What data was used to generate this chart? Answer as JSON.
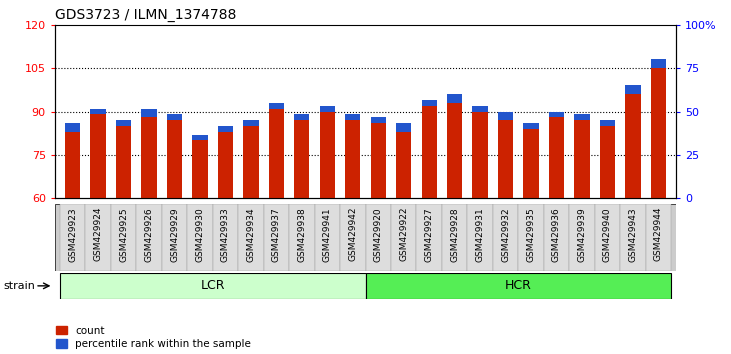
{
  "title": "GDS3723 / ILMN_1374788",
  "categories": [
    "GSM429923",
    "GSM429924",
    "GSM429925",
    "GSM429926",
    "GSM429929",
    "GSM429930",
    "GSM429933",
    "GSM429934",
    "GSM429937",
    "GSM429938",
    "GSM429941",
    "GSM429942",
    "GSM429920",
    "GSM429922",
    "GSM429927",
    "GSM429928",
    "GSM429931",
    "GSM429932",
    "GSM429935",
    "GSM429936",
    "GSM429939",
    "GSM429940",
    "GSM429943",
    "GSM429944"
  ],
  "red_values": [
    83,
    89,
    85,
    88,
    87,
    80,
    83,
    85,
    91,
    87,
    90,
    87,
    86,
    83,
    92,
    93,
    90,
    87,
    84,
    88,
    87,
    85,
    96,
    105
  ],
  "blue_values": [
    3,
    2,
    2,
    3,
    2,
    2,
    2,
    2,
    2,
    2,
    2,
    2,
    2,
    3,
    2,
    3,
    2,
    3,
    2,
    2,
    2,
    2,
    3,
    3
  ],
  "ylim_left": [
    60,
    120
  ],
  "ylim_right": [
    0,
    100
  ],
  "yticks_left": [
    60,
    75,
    90,
    105,
    120
  ],
  "yticks_right": [
    0,
    25,
    50,
    75,
    100
  ],
  "yticklabels_right": [
    "0",
    "25",
    "50",
    "75",
    "100%"
  ],
  "dotted_lines": [
    75,
    90,
    105
  ],
  "bar_color_red": "#cc2200",
  "bar_color_blue": "#2255cc",
  "lcr_color": "#ccffcc",
  "hcr_color": "#55ee55",
  "tick_bg_color": "#cccccc",
  "strain_label": "strain",
  "lcr_label": "LCR",
  "hcr_label": "HCR",
  "legend_count": "count",
  "legend_percentile": "percentile rank within the sample",
  "n_lcr": 12,
  "n_total": 24
}
